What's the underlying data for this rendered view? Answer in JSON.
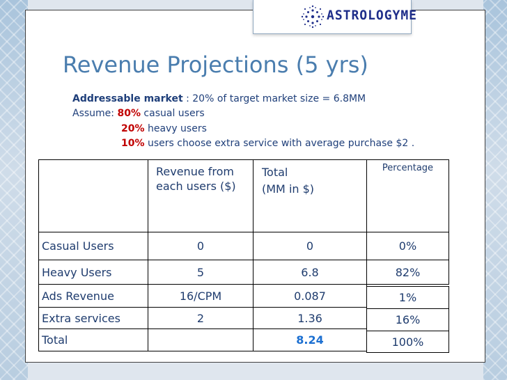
{
  "logo": {
    "icon": "star-burst-icon",
    "text": "ASTROLOGYME"
  },
  "title": "Revenue Projections (5 yrs)",
  "info": {
    "line1_label": "Addressable market",
    "line1_text": " : 20% of target market size = 6.8MM",
    "line2_label": "Assume: ",
    "line2_pct": "80%",
    "line2_text": " casual users",
    "line3_pct": "20%",
    "line3_text": " heavy users",
    "line4_pct": "10%",
    "line4_text": " users choose extra service  with average purchase $2 ."
  },
  "table": {
    "header": {
      "revenue": "Revenue from each users ($)",
      "total_line1": "Total",
      "total_line2": "(MM in $)",
      "percentage": "Percentage"
    },
    "rows": [
      {
        "label": "Casual Users",
        "revenue": "0",
        "total": "0",
        "percentage": "0%"
      },
      {
        "label": "Heavy Users",
        "revenue": "5",
        "total": "6.8",
        "percentage": "82%"
      },
      {
        "label": "Ads Revenue",
        "revenue": "16/CPM",
        "total": "0.087",
        "percentage": "1%"
      },
      {
        "label": "Extra services",
        "revenue": "2",
        "total": "1.36",
        "percentage": "16%"
      },
      {
        "label": "Total",
        "revenue": "",
        "total": "8.24",
        "percentage": "100%"
      }
    ]
  },
  "colors": {
    "title": "#4a7dae",
    "text": "#1f3c6e",
    "highlight_red": "#c00000",
    "highlight_blue": "#1b6fd1"
  }
}
